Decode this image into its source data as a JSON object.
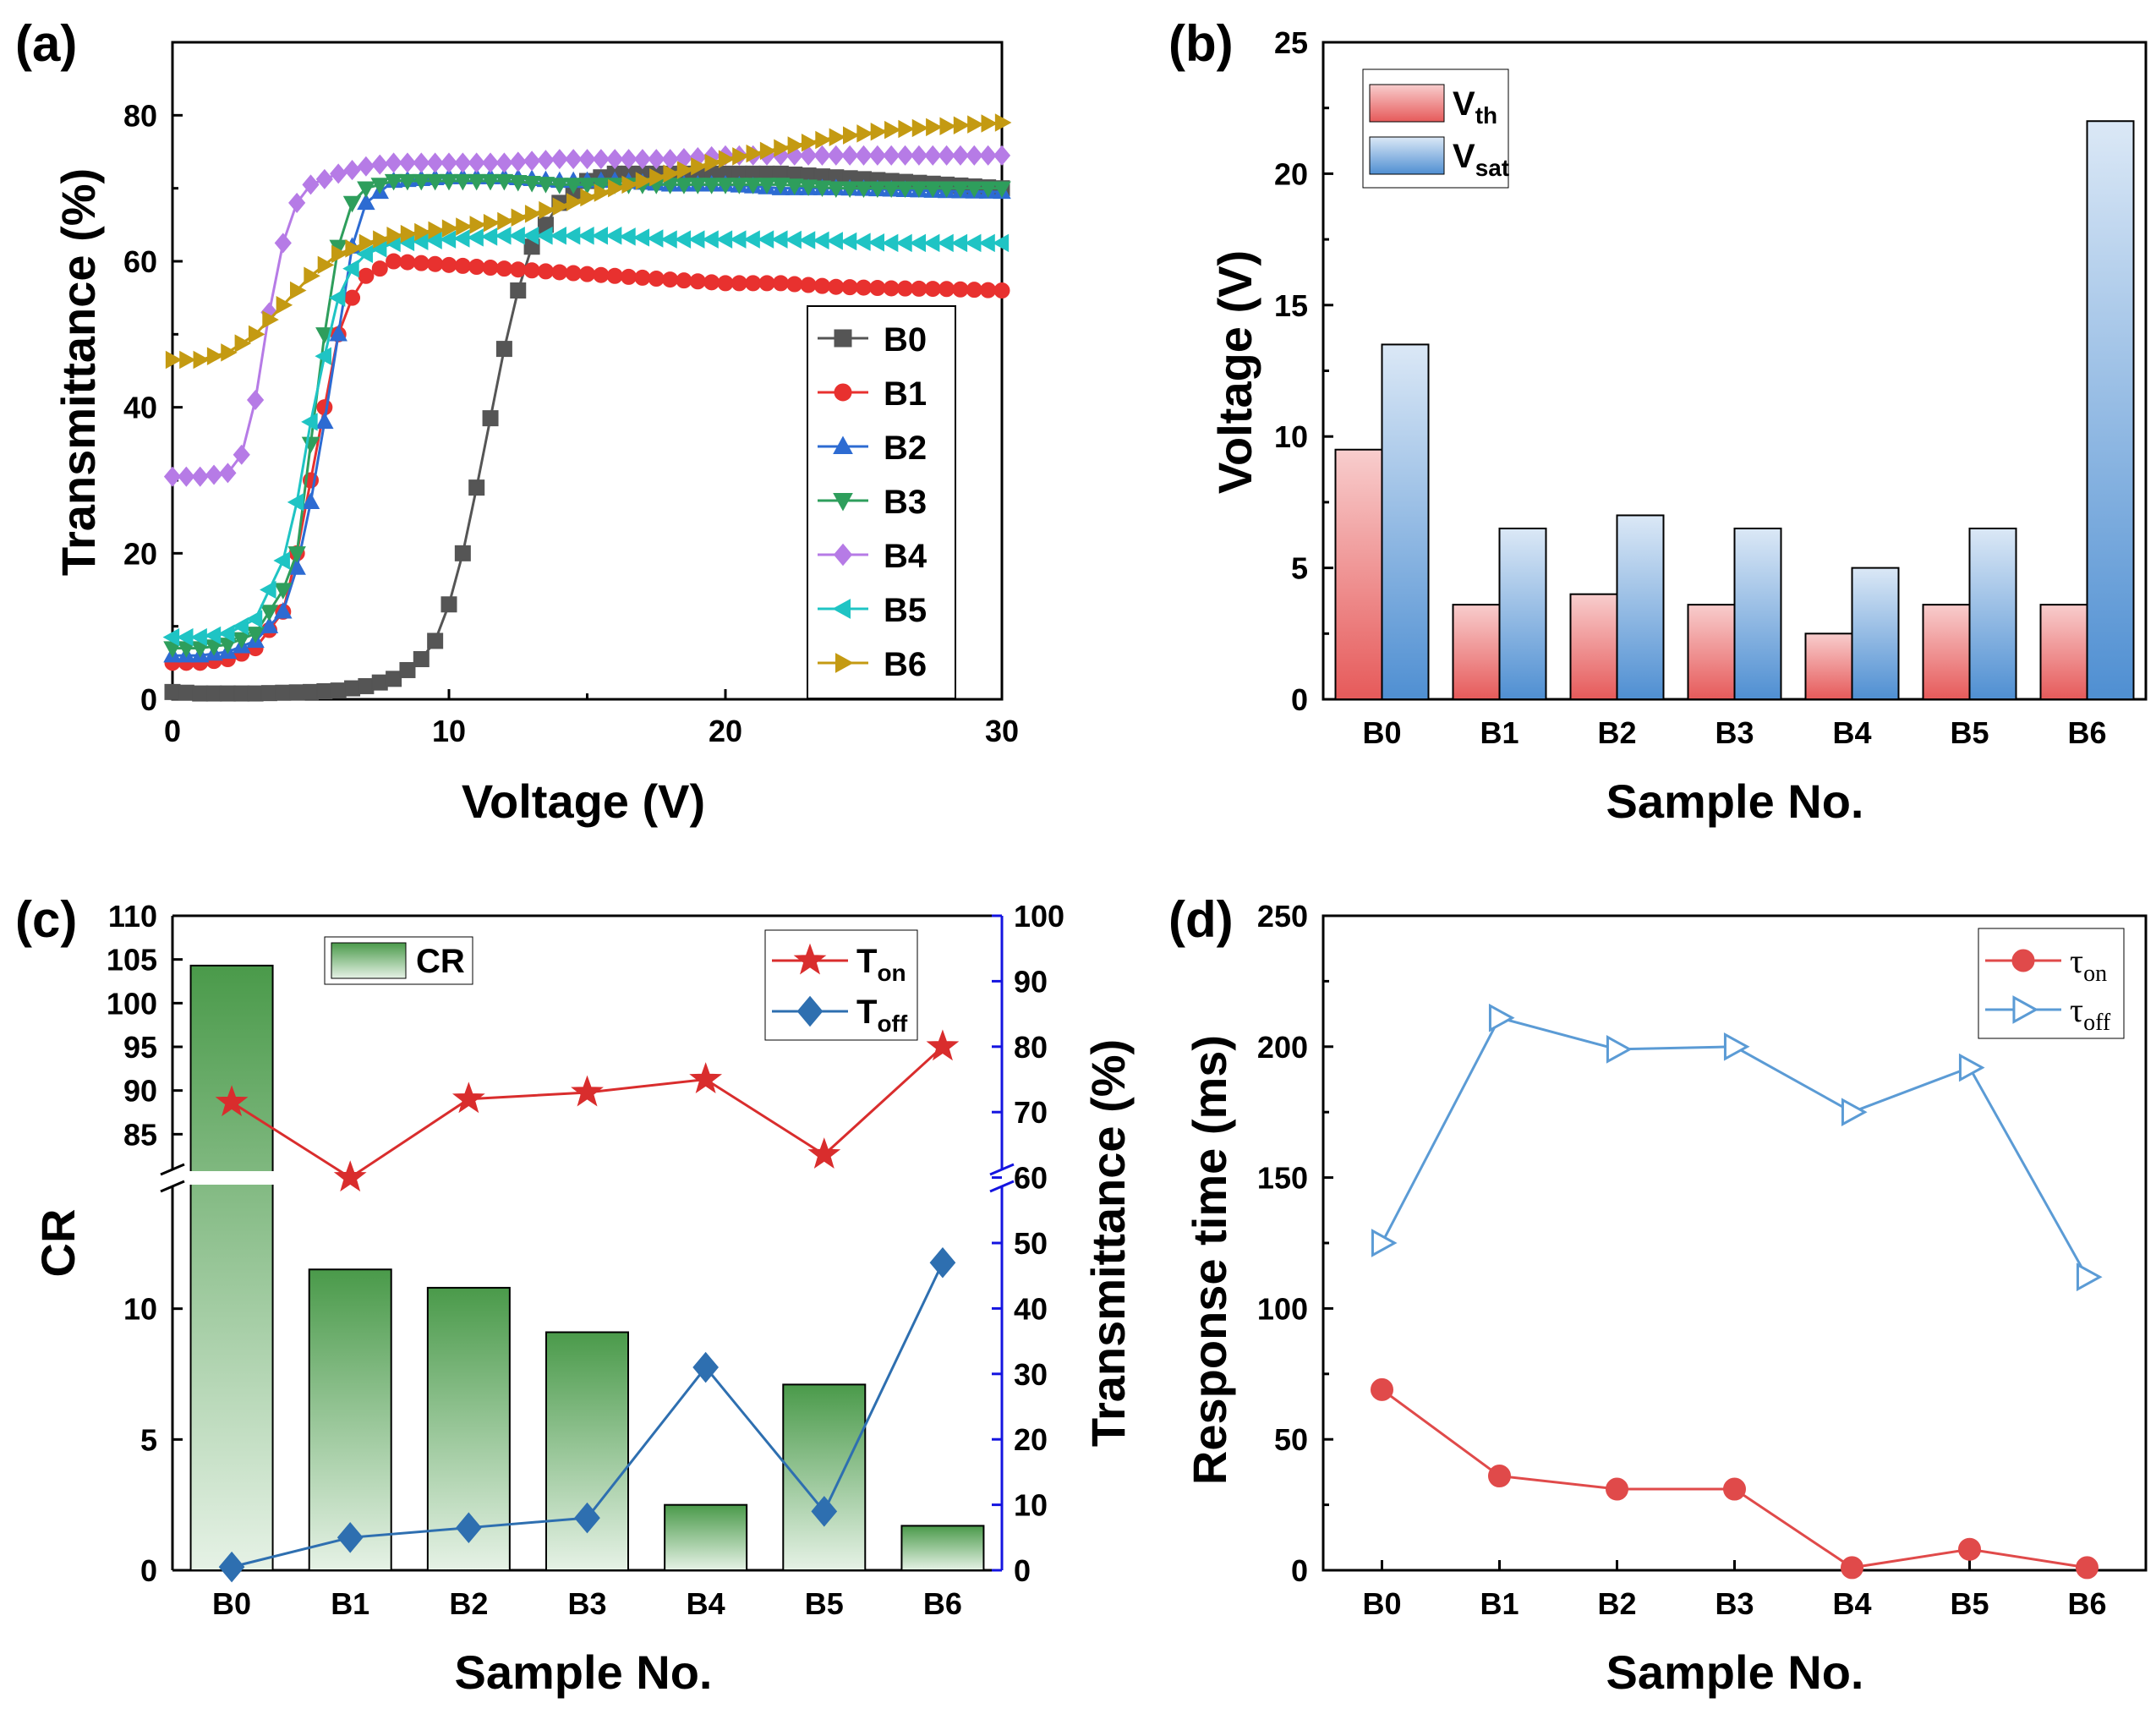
{
  "chart_data": [
    {
      "panel": "(a)",
      "type": "line",
      "xlabel": "Voltage (V)",
      "ylabel": "Transmittance (%)",
      "xlim": [
        0,
        30
      ],
      "ylim": [
        0,
        90
      ],
      "xticks": [
        0,
        10,
        20,
        30
      ],
      "yticks": [
        0,
        20,
        40,
        60,
        80
      ],
      "legend_position": "center-right",
      "series": [
        {
          "name": "B0",
          "color": "#555555",
          "marker": "square",
          "points": [
            [
              0,
              1
            ],
            [
              1,
              0.8
            ],
            [
              2,
              0.8
            ],
            [
              3,
              0.8
            ],
            [
              4,
              0.9
            ],
            [
              5,
              1
            ],
            [
              6,
              1.2
            ],
            [
              7,
              1.8
            ],
            [
              8,
              2.8
            ],
            [
              8.5,
              4
            ],
            [
              9,
              5.5
            ],
            [
              9.5,
              8
            ],
            [
              10,
              13
            ],
            [
              10.5,
              20
            ],
            [
              11,
              29
            ],
            [
              11.5,
              38.5
            ],
            [
              12,
              48
            ],
            [
              12.5,
              56
            ],
            [
              13,
              62
            ],
            [
              14,
              68
            ],
            [
              15,
              71
            ],
            [
              16,
              72
            ],
            [
              18,
              72
            ],
            [
              20,
              72
            ],
            [
              22,
              72
            ],
            [
              24,
              71.5
            ],
            [
              26,
              71
            ],
            [
              28,
              70.5
            ],
            [
              30,
              70
            ]
          ]
        },
        {
          "name": "B1",
          "color": "#e8312f",
          "marker": "circle",
          "points": [
            [
              0,
              5
            ],
            [
              1,
              5
            ],
            [
              2,
              5.5
            ],
            [
              3,
              7
            ],
            [
              4,
              12
            ],
            [
              4.5,
              20
            ],
            [
              5,
              30
            ],
            [
              5.5,
              40
            ],
            [
              6,
              50
            ],
            [
              6.5,
              55
            ],
            [
              7,
              58
            ],
            [
              8,
              60
            ],
            [
              10,
              59.5
            ],
            [
              12,
              59
            ],
            [
              14,
              58.5
            ],
            [
              16,
              58
            ],
            [
              18,
              57.5
            ],
            [
              20,
              57
            ],
            [
              22,
              57
            ],
            [
              24,
              56.5
            ],
            [
              26,
              56.3
            ],
            [
              28,
              56.2
            ],
            [
              30,
              56
            ]
          ]
        },
        {
          "name": "B2",
          "color": "#2d6bd2",
          "marker": "triangle-up",
          "points": [
            [
              0,
              6
            ],
            [
              1,
              6
            ],
            [
              2,
              6.5
            ],
            [
              3,
              8
            ],
            [
              4,
              12
            ],
            [
              4.5,
              18
            ],
            [
              5,
              27
            ],
            [
              5.5,
              38
            ],
            [
              6,
              50
            ],
            [
              6.5,
              62
            ],
            [
              7,
              68
            ],
            [
              8,
              71
            ],
            [
              10,
              71.5
            ],
            [
              12,
              71.5
            ],
            [
              14,
              71
            ],
            [
              16,
              71
            ],
            [
              18,
              70.5
            ],
            [
              20,
              70.5
            ],
            [
              22,
              70
            ],
            [
              24,
              70
            ],
            [
              26,
              69.8
            ],
            [
              28,
              69.6
            ],
            [
              30,
              69.5
            ]
          ]
        },
        {
          "name": "B3",
          "color": "#2e9e5c",
          "marker": "triangle-down",
          "points": [
            [
              0,
              7
            ],
            [
              1,
              7
            ],
            [
              2,
              7.5
            ],
            [
              3,
              9
            ],
            [
              4,
              15
            ],
            [
              4.5,
              20
            ],
            [
              5,
              35
            ],
            [
              5.5,
              50
            ],
            [
              6,
              62
            ],
            [
              6.5,
              68
            ],
            [
              7,
              70
            ],
            [
              8,
              71
            ],
            [
              10,
              71
            ],
            [
              12,
              71
            ],
            [
              14,
              70.5
            ],
            [
              16,
              70.5
            ],
            [
              18,
              70.5
            ],
            [
              20,
              70.5
            ],
            [
              22,
              70.5
            ],
            [
              24,
              70
            ],
            [
              26,
              70
            ],
            [
              28,
              70
            ],
            [
              30,
              70
            ]
          ]
        },
        {
          "name": "B4",
          "color": "#b67be6",
          "marker": "diamond",
          "points": [
            [
              0,
              30.5
            ],
            [
              1,
              30.5
            ],
            [
              2,
              31
            ],
            [
              2.5,
              33.5
            ],
            [
              3,
              41
            ],
            [
              3.5,
              53
            ],
            [
              4,
              62.5
            ],
            [
              4.5,
              68
            ],
            [
              5,
              70.5
            ],
            [
              6,
              72
            ],
            [
              7,
              73
            ],
            [
              8,
              73.5
            ],
            [
              10,
              73.5
            ],
            [
              12,
              73.5
            ],
            [
              14,
              74
            ],
            [
              16,
              74
            ],
            [
              18,
              74
            ],
            [
              20,
              74.5
            ],
            [
              22,
              74.5
            ],
            [
              24,
              74.5
            ],
            [
              26,
              74.5
            ],
            [
              28,
              74.5
            ],
            [
              30,
              74.5
            ]
          ]
        },
        {
          "name": "B5",
          "color": "#1fc4c4",
          "marker": "triangle-left",
          "points": [
            [
              0,
              8.5
            ],
            [
              1,
              8.5
            ],
            [
              2,
              9
            ],
            [
              3,
              11
            ],
            [
              3.5,
              15
            ],
            [
              4,
              19
            ],
            [
              4.5,
              27
            ],
            [
              5,
              38
            ],
            [
              5.5,
              47
            ],
            [
              6,
              55
            ],
            [
              6.5,
              59
            ],
            [
              7,
              61
            ],
            [
              8,
              62.5
            ],
            [
              10,
              63
            ],
            [
              12,
              63.5
            ],
            [
              14,
              63.5
            ],
            [
              16,
              63.5
            ],
            [
              18,
              63
            ],
            [
              20,
              63
            ],
            [
              22,
              63
            ],
            [
              24,
              62.8
            ],
            [
              26,
              62.5
            ],
            [
              28,
              62.5
            ],
            [
              30,
              62.5
            ]
          ]
        },
        {
          "name": "B6",
          "color": "#c49a12",
          "marker": "triangle-right",
          "points": [
            [
              0,
              46.5
            ],
            [
              1,
              46.5
            ],
            [
              2,
              47.5
            ],
            [
              3,
              50
            ],
            [
              4,
              54
            ],
            [
              5,
              58
            ],
            [
              6,
              61
            ],
            [
              7,
              62.5
            ],
            [
              8,
              63.5
            ],
            [
              10,
              64.5
            ],
            [
              12,
              65.5
            ],
            [
              14,
              67.5
            ],
            [
              16,
              70
            ],
            [
              18,
              72
            ],
            [
              20,
              74
            ],
            [
              22,
              75.5
            ],
            [
              24,
              77
            ],
            [
              26,
              78
            ],
            [
              28,
              78.5
            ],
            [
              30,
              79
            ]
          ]
        }
      ]
    },
    {
      "panel": "(b)",
      "type": "bar",
      "xlabel": "Sample No.",
      "ylabel": "Voltage (V)",
      "ylim": [
        0,
        25
      ],
      "yticks": [
        0,
        5,
        10,
        15,
        20,
        25
      ],
      "categories": [
        "B0",
        "B1",
        "B2",
        "B3",
        "B4",
        "B5",
        "B6"
      ],
      "legend_position": "top-left",
      "series": [
        {
          "name": "V",
          "sub": "th",
          "color_top": "#f8cdcd",
          "color_bottom": "#e65a5a",
          "values": [
            9.5,
            3.6,
            4.0,
            3.6,
            2.5,
            3.6,
            3.6
          ]
        },
        {
          "name": "V",
          "sub": "sat",
          "color_top": "#dbe8f6",
          "color_bottom": "#4f8fd2",
          "values": [
            13.5,
            6.5,
            7.0,
            6.5,
            5.0,
            6.5,
            22.0
          ]
        }
      ]
    },
    {
      "panel": "(c)",
      "type": "bar",
      "xlabel": "Sample No.",
      "ylabel": "CR",
      "y2label": "Transmittance (%)",
      "categories": [
        "B0",
        "B1",
        "B2",
        "B3",
        "B4",
        "B5",
        "B6"
      ],
      "y_lower_range": [
        0,
        15
      ],
      "y_upper_range": [
        80,
        110
      ],
      "yticks_lower": [
        0,
        5,
        10
      ],
      "yticks_upper": [
        85,
        90,
        95,
        100,
        105,
        110
      ],
      "y2lim": [
        0,
        100
      ],
      "y2ticks": [
        0,
        10,
        20,
        30,
        40,
        50,
        60,
        70,
        80,
        90,
        100
      ],
      "bars": {
        "name": "CR",
        "color_top": "#4a9a4a",
        "color_bottom": "#e6f2e6",
        "values": [
          104.3,
          11.5,
          10.8,
          9.1,
          2.5,
          7.1,
          1.7
        ]
      },
      "series": [
        {
          "name": "T",
          "sub": "on",
          "color": "#d92d2d",
          "marker": "star",
          "values": [
            71.5,
            60.0,
            72.0,
            73.0,
            75.0,
            63.5,
            80.0
          ]
        },
        {
          "name": "T",
          "sub": "off",
          "color": "#2e6fb0",
          "marker": "diamond",
          "values": [
            0.5,
            5.0,
            6.5,
            8.0,
            31.0,
            9.0,
            47.0
          ]
        }
      ]
    },
    {
      "panel": "(d)",
      "type": "line",
      "xlabel": "Sample No.",
      "ylabel": "Response time (ms)",
      "ylim": [
        0,
        250
      ],
      "yticks": [
        0,
        50,
        100,
        150,
        200,
        250
      ],
      "categories": [
        "B0",
        "B1",
        "B2",
        "B3",
        "B4",
        "B5",
        "B6"
      ],
      "legend_position": "top-right",
      "series": [
        {
          "name": "τ",
          "sub": "on",
          "color": "#e04a4a",
          "marker": "circle",
          "values": [
            69,
            36,
            31,
            31,
            1,
            8,
            1
          ]
        },
        {
          "name": "τ",
          "sub": "off",
          "color": "#5b9bd5",
          "marker": "triangle-right-open",
          "values": [
            125,
            211,
            199,
            200,
            175,
            192,
            112
          ]
        }
      ]
    }
  ]
}
